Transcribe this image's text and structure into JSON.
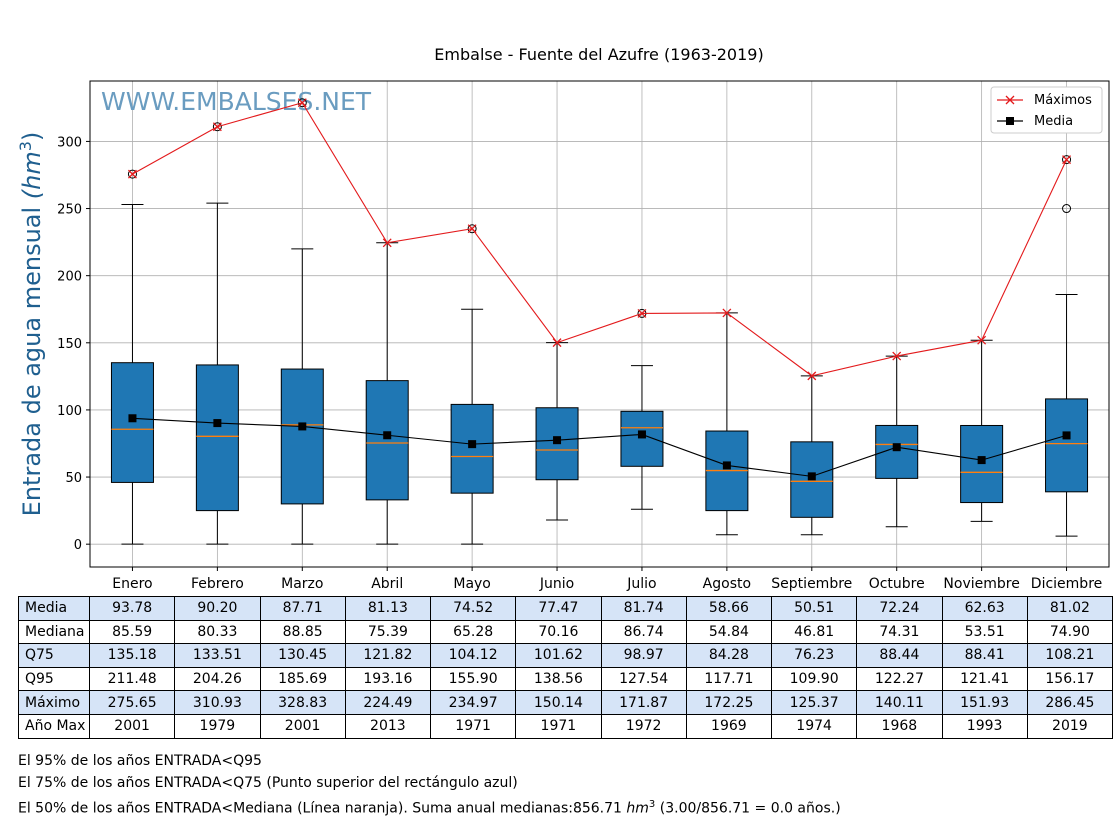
{
  "chart_data": {
    "type": "box",
    "title": "Embalse - Fuente del Azufre (1963-2019)",
    "ylabel": "Entrada de agua mensual",
    "ylabel_unit": "(hm",
    "ylabel_exp": "3",
    "ylabel_close": ")",
    "watermark": "WWW.EMBALSES.NET",
    "ylim": [
      -17,
      345
    ],
    "yticks": [
      0,
      50,
      100,
      150,
      200,
      250,
      300
    ],
    "categories": [
      "Enero",
      "Febrero",
      "Marzo",
      "Abril",
      "Mayo",
      "Junio",
      "Julio",
      "Agosto",
      "Septiembre",
      "Octubre",
      "Noviembre",
      "Diciembre"
    ],
    "boxes": [
      {
        "q1": 46,
        "median": 85.59,
        "q3": 135.18,
        "whislo": 0,
        "whishi": 253,
        "fliers": [
          275.65
        ]
      },
      {
        "q1": 25,
        "median": 80.33,
        "q3": 133.51,
        "whislo": 0,
        "whishi": 254,
        "fliers": [
          310.93
        ]
      },
      {
        "q1": 30,
        "median": 88.85,
        "q3": 130.45,
        "whislo": 0,
        "whishi": 220,
        "fliers": [
          328.83
        ]
      },
      {
        "q1": 33,
        "median": 75.39,
        "q3": 121.82,
        "whislo": 0,
        "whishi": 224.49,
        "fliers": []
      },
      {
        "q1": 38,
        "median": 65.28,
        "q3": 104.12,
        "whislo": 0,
        "whishi": 175,
        "fliers": [
          234.97
        ]
      },
      {
        "q1": 48,
        "median": 70.16,
        "q3": 101.62,
        "whislo": 18,
        "whishi": 150.14,
        "fliers": []
      },
      {
        "q1": 58,
        "median": 86.74,
        "q3": 98.97,
        "whislo": 26,
        "whishi": 133,
        "fliers": [
          171.87
        ]
      },
      {
        "q1": 25,
        "median": 54.84,
        "q3": 84.28,
        "whislo": 7,
        "whishi": 172.25,
        "fliers": []
      },
      {
        "q1": 20,
        "median": 46.81,
        "q3": 76.23,
        "whislo": 7,
        "whishi": 125.37,
        "fliers": []
      },
      {
        "q1": 49,
        "median": 74.31,
        "q3": 88.44,
        "whislo": 13,
        "whishi": 140.11,
        "fliers": []
      },
      {
        "q1": 31,
        "median": 53.51,
        "q3": 88.41,
        "whislo": 17,
        "whishi": 151.93,
        "fliers": []
      },
      {
        "q1": 39,
        "median": 74.9,
        "q3": 108.21,
        "whislo": 6,
        "whishi": 186,
        "fliers": [
          250,
          286.45
        ]
      }
    ],
    "series": [
      {
        "name": "Máximos",
        "color": "#e31a1c",
        "marker": "x",
        "values": [
          275.65,
          310.93,
          328.83,
          224.49,
          234.97,
          150.14,
          171.87,
          172.25,
          125.37,
          140.11,
          151.93,
          286.45
        ]
      },
      {
        "name": "Media",
        "color": "#000000",
        "marker": "square",
        "values": [
          93.78,
          90.2,
          87.71,
          81.13,
          74.52,
          77.47,
          81.74,
          58.66,
          50.51,
          72.24,
          62.63,
          81.02
        ]
      }
    ],
    "colors": {
      "box": "#1f77b4",
      "median": "#ff7f0e",
      "grid": "#b0b0b0",
      "watermark": "#6a9cc0"
    }
  },
  "table": {
    "rows": [
      {
        "label": "Media",
        "shaded": true,
        "values": [
          "93.78",
          "90.20",
          "87.71",
          "81.13",
          "74.52",
          "77.47",
          "81.74",
          "58.66",
          "50.51",
          "72.24",
          "62.63",
          "81.02"
        ]
      },
      {
        "label": "Mediana",
        "shaded": false,
        "values": [
          "85.59",
          "80.33",
          "88.85",
          "75.39",
          "65.28",
          "70.16",
          "86.74",
          "54.84",
          "46.81",
          "74.31",
          "53.51",
          "74.90"
        ]
      },
      {
        "label": "Q75",
        "shaded": true,
        "values": [
          "135.18",
          "133.51",
          "130.45",
          "121.82",
          "104.12",
          "101.62",
          "98.97",
          "84.28",
          "76.23",
          "88.44",
          "88.41",
          "108.21"
        ]
      },
      {
        "label": "Q95",
        "shaded": false,
        "values": [
          "211.48",
          "204.26",
          "185.69",
          "193.16",
          "155.90",
          "138.56",
          "127.54",
          "117.71",
          "109.90",
          "122.27",
          "121.41",
          "156.17"
        ]
      },
      {
        "label": "Máximo",
        "shaded": true,
        "values": [
          "275.65",
          "310.93",
          "328.83",
          "224.49",
          "234.97",
          "150.14",
          "171.87",
          "172.25",
          "125.37",
          "140.11",
          "151.93",
          "286.45"
        ]
      },
      {
        "label": "Año Max",
        "shaded": false,
        "values": [
          "2001",
          "1979",
          "2001",
          "2013",
          "1971",
          "1971",
          "1972",
          "1969",
          "1974",
          "1968",
          "1993",
          "2019"
        ]
      }
    ]
  },
  "notes": {
    "line1": "El 95% de los años ENTRADA<Q95",
    "line2": "El 75% de los años ENTRADA<Q75 (Punto superior del rectángulo azul)",
    "line3_pre": "El 50% de los años ENTRADA<Mediana (Línea naranja). Suma anual medianas:856.71 ",
    "line3_unit": "hm",
    "line3_exp": "3",
    "line3_post": " (3.00/856.71 = 0.0 años.)"
  }
}
